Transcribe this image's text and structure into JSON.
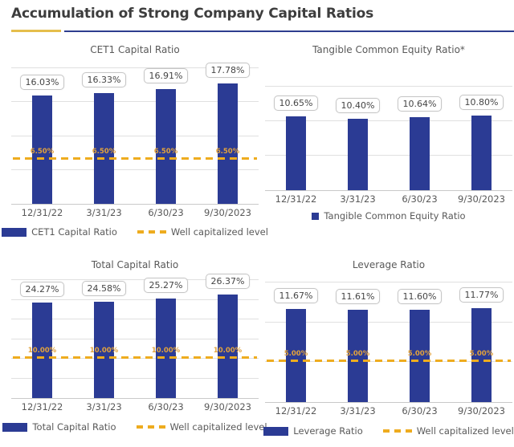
{
  "page": {
    "title": "Accumulation of Strong Company Capital Ratios",
    "accent_gold": "#E5BE4C",
    "accent_navy": "#2B3B94",
    "dash_gold": "#EEAC1F"
  },
  "chart_data": [
    {
      "type": "bar",
      "title": "CET1 Capital Ratio",
      "categories": [
        "12/31/22",
        "3/31/23",
        "6/30/23",
        "9/30/2023"
      ],
      "values": [
        16.03,
        16.33,
        16.91,
        17.78
      ],
      "data_labels": [
        "16.03%",
        "16.33%",
        "16.91%",
        "17.78%"
      ],
      "ylim": [
        0,
        20
      ],
      "gridline_step": 5,
      "grid": "on",
      "well_capitalized_level": 6.5,
      "well_capitalized_label": "6.50%",
      "legend_position": "bottom",
      "legend": [
        {
          "swatch": "bar",
          "label": "CET1 Capital Ratio"
        },
        {
          "swatch": "dash",
          "label": "Well capitalized level"
        }
      ]
    },
    {
      "type": "bar",
      "title": "Tangible Common Equity Ratio*",
      "categories": [
        "12/31/22",
        "3/31/23",
        "6/30/23",
        "9/30/2023"
      ],
      "values": [
        10.65,
        10.4,
        10.64,
        10.8
      ],
      "data_labels": [
        "10.65%",
        "10.40%",
        "10.64%",
        "10.80%"
      ],
      "ylim": [
        0,
        15
      ],
      "gridline_step": 5,
      "grid": "on",
      "well_capitalized_level": null,
      "well_capitalized_label": null,
      "legend_position": "bottom",
      "legend": [
        {
          "swatch": "square",
          "label": "Tangible Common Equity Ratio"
        }
      ]
    },
    {
      "type": "bar",
      "title": "Total Capital Ratio",
      "categories": [
        "12/31/22",
        "3/31/23",
        "6/30/23",
        "9/30/2023"
      ],
      "values": [
        24.27,
        24.58,
        25.27,
        26.37
      ],
      "data_labels": [
        "24.27%",
        "24.58%",
        "25.27%",
        "26.37%"
      ],
      "ylim": [
        0,
        30
      ],
      "gridline_step": 5,
      "grid": "on",
      "well_capitalized_level": 10.0,
      "well_capitalized_label": "10.00%",
      "legend_position": "bottom",
      "legend": [
        {
          "swatch": "bar",
          "label": "Total Capital Ratio"
        },
        {
          "swatch": "dash",
          "label": "Well capitalized level"
        }
      ]
    },
    {
      "type": "bar",
      "title": "Leverage Ratio",
      "categories": [
        "12/31/22",
        "3/31/23",
        "6/30/23",
        "9/30/2023"
      ],
      "values": [
        11.67,
        11.61,
        11.6,
        11.77
      ],
      "data_labels": [
        "11.67%",
        "11.61%",
        "11.60%",
        "11.77%"
      ],
      "ylim": [
        0,
        15
      ],
      "gridline_step": 5,
      "grid": "on",
      "well_capitalized_level": 5.0,
      "well_capitalized_label": "5.00%",
      "legend_position": "bottom",
      "legend": [
        {
          "swatch": "bar",
          "label": "Leverage Ratio"
        },
        {
          "swatch": "dash",
          "label": "Well capitalized level"
        }
      ]
    }
  ]
}
